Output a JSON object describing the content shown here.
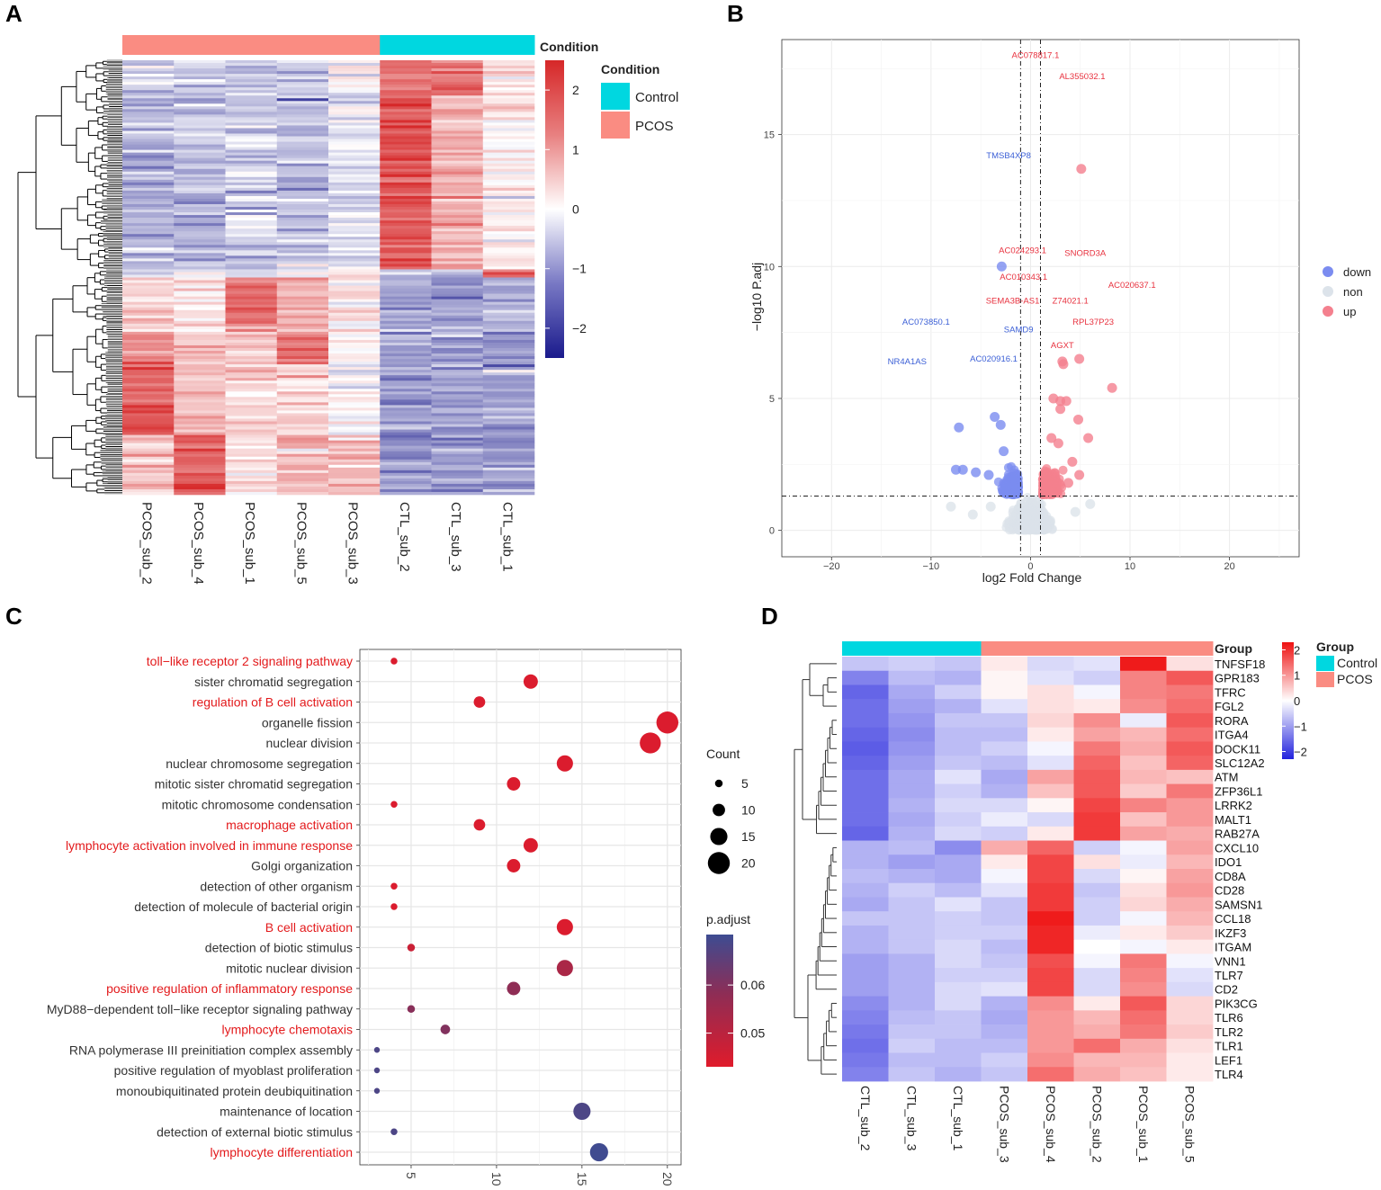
{
  "panels": {
    "a": "A",
    "b": "B",
    "c": "C",
    "d": "D"
  },
  "chart_data": [
    {
      "id": "A",
      "type": "heatmap",
      "columns": [
        "PCOS_sub_2",
        "PCOS_sub_4",
        "PCOS_sub_1",
        "PCOS_sub_5",
        "PCOS_sub_3",
        "CTL_sub_2",
        "CTL_sub_3",
        "CTL_sub_1"
      ],
      "column_groups": [
        "PCOS",
        "PCOS",
        "PCOS",
        "PCOS",
        "PCOS",
        "Control",
        "Control",
        "Control"
      ],
      "annotation_title": "Condition",
      "color_scale": {
        "min": -2.5,
        "max": 2.5,
        "ticks": [
          2,
          1,
          0,
          -1,
          -2
        ],
        "low": "#1a1a8c",
        "mid": "#ffffff",
        "high": "#d62728"
      },
      "legend": {
        "title": "Condition",
        "items": [
          {
            "label": "Control",
            "color": "#00d7e0"
          },
          {
            "label": "PCOS",
            "color": "#fa8c82"
          }
        ]
      }
    },
    {
      "id": "B",
      "type": "scatter",
      "xlabel": "log2 Fold Change",
      "ylabel": "−log10 P.adj",
      "xlim": [
        -25,
        27
      ],
      "ylim": [
        -1,
        18.6
      ],
      "xticks": [
        -20,
        -10,
        0,
        10,
        20
      ],
      "yticks": [
        0,
        5,
        10,
        15
      ],
      "vlines": [
        -1,
        1
      ],
      "hline": 1.3,
      "legend": [
        {
          "label": "down",
          "color": "#7b8cf0"
        },
        {
          "label": "non",
          "color": "#dce3ea"
        },
        {
          "label": "up",
          "color": "#f4808e"
        }
      ],
      "labeled_points": [
        {
          "label": "AC078817.1",
          "x": 0.5,
          "y": 17.9,
          "group": "up"
        },
        {
          "label": "AL355032.1",
          "x": 5.2,
          "y": 17.1,
          "group": "up"
        },
        {
          "label": "TMSB4XP8",
          "x": -2.2,
          "y": 14.1,
          "group": "down"
        },
        {
          "label": "AC024293.1",
          "x": -0.8,
          "y": 10.5,
          "group": "up"
        },
        {
          "label": "SNORD3A",
          "x": 5.5,
          "y": 10.4,
          "group": "up"
        },
        {
          "label": "AC010343.1",
          "x": -0.7,
          "y": 9.5,
          "group": "up"
        },
        {
          "label": "AC020637.1",
          "x": 10.2,
          "y": 9.2,
          "group": "up"
        },
        {
          "label": "SEMA3B-AS1",
          "x": -1.8,
          "y": 8.6,
          "group": "up"
        },
        {
          "label": "Z74021.1",
          "x": 4.0,
          "y": 8.6,
          "group": "up"
        },
        {
          "label": "AC073850.1",
          "x": -10.5,
          "y": 7.8,
          "group": "down"
        },
        {
          "label": "RPL37P23",
          "x": 6.3,
          "y": 7.8,
          "group": "up"
        },
        {
          "label": "SAMD9",
          "x": -1.2,
          "y": 7.5,
          "group": "down"
        },
        {
          "label": "AGXT",
          "x": 3.2,
          "y": 6.9,
          "group": "up"
        },
        {
          "label": "NR4A1AS",
          "x": -12.4,
          "y": 6.3,
          "group": "down"
        },
        {
          "label": "AC020916.1",
          "x": -3.7,
          "y": 6.4,
          "group": "down"
        }
      ],
      "points": [
        {
          "x": 5.1,
          "y": 13.7,
          "g": "up"
        },
        {
          "x": -2.9,
          "y": 10.0,
          "g": "down"
        },
        {
          "x": 8.2,
          "y": 5.4,
          "g": "up"
        },
        {
          "x": 3.2,
          "y": 6.4,
          "g": "up"
        },
        {
          "x": 3.3,
          "y": 6.3,
          "g": "up"
        },
        {
          "x": 4.9,
          "y": 6.5,
          "g": "up"
        },
        {
          "x": -7.2,
          "y": 3.9,
          "g": "down"
        },
        {
          "x": -3.6,
          "y": 4.3,
          "g": "down"
        },
        {
          "x": -3.0,
          "y": 4.0,
          "g": "down"
        },
        {
          "x": -7.5,
          "y": 2.3,
          "g": "down"
        },
        {
          "x": -6.8,
          "y": 2.3,
          "g": "down"
        },
        {
          "x": -5.5,
          "y": 2.2,
          "g": "down"
        },
        {
          "x": -4.2,
          "y": 2.1,
          "g": "down"
        },
        {
          "x": -2.7,
          "y": 3.0,
          "g": "down"
        },
        {
          "x": 2.3,
          "y": 5.0,
          "g": "up"
        },
        {
          "x": 3.0,
          "y": 4.9,
          "g": "up"
        },
        {
          "x": 3.6,
          "y": 4.9,
          "g": "up"
        },
        {
          "x": 3.0,
          "y": 4.6,
          "g": "up"
        },
        {
          "x": 4.8,
          "y": 4.2,
          "g": "up"
        },
        {
          "x": 5.8,
          "y": 3.5,
          "g": "up"
        },
        {
          "x": 2.1,
          "y": 3.5,
          "g": "up"
        },
        {
          "x": 2.8,
          "y": 3.3,
          "g": "up"
        },
        {
          "x": 4.2,
          "y": 2.6,
          "g": "up"
        },
        {
          "x": 4.9,
          "y": 2.1,
          "g": "up"
        },
        {
          "x": 3.8,
          "y": 1.8,
          "g": "up"
        },
        {
          "x": -8.0,
          "y": 0.9,
          "g": "non"
        },
        {
          "x": -5.8,
          "y": 0.6,
          "g": "non"
        },
        {
          "x": -4.0,
          "y": 0.9,
          "g": "non"
        },
        {
          "x": 6.0,
          "y": 1.0,
          "g": "non"
        },
        {
          "x": 4.5,
          "y": 0.7,
          "g": "non"
        }
      ]
    },
    {
      "id": "C",
      "type": "scatter",
      "subtype": "dot",
      "xticks": [
        5,
        10,
        15,
        20
      ],
      "xlim": [
        2,
        20.8
      ],
      "size_legend": {
        "title": "Count",
        "values": [
          5,
          10,
          15,
          20
        ]
      },
      "color_legend": {
        "title": "p.adjust",
        "ticks": [
          0.06,
          0.05
        ],
        "min": 0.043,
        "max": 0.0705,
        "low": "#e01b2b",
        "high": "#3d4c92"
      },
      "terms": [
        {
          "label": "toll−like receptor 2 signaling pathway",
          "count": 4,
          "padj": 0.044,
          "highlight": true
        },
        {
          "label": "sister chromatid segregation",
          "count": 12,
          "padj": 0.044,
          "highlight": false
        },
        {
          "label": "regulation of B cell activation",
          "count": 9,
          "padj": 0.044,
          "highlight": true
        },
        {
          "label": "organelle fission",
          "count": 20,
          "padj": 0.044,
          "highlight": false
        },
        {
          "label": "nuclear division",
          "count": 19,
          "padj": 0.044,
          "highlight": false
        },
        {
          "label": "nuclear chromosome segregation",
          "count": 14,
          "padj": 0.044,
          "highlight": false
        },
        {
          "label": "mitotic sister chromatid segregation",
          "count": 11,
          "padj": 0.044,
          "highlight": false
        },
        {
          "label": "mitotic chromosome condensation",
          "count": 4,
          "padj": 0.044,
          "highlight": false
        },
        {
          "label": "macrophage activation",
          "count": 9,
          "padj": 0.044,
          "highlight": true
        },
        {
          "label": "lymphocyte activation involved in immune response",
          "count": 12,
          "padj": 0.044,
          "highlight": true
        },
        {
          "label": "Golgi organization",
          "count": 11,
          "padj": 0.044,
          "highlight": false
        },
        {
          "label": "detection of other organism",
          "count": 4,
          "padj": 0.044,
          "highlight": false
        },
        {
          "label": "detection of molecule of bacterial origin",
          "count": 4,
          "padj": 0.044,
          "highlight": false
        },
        {
          "label": "B cell activation",
          "count": 14,
          "padj": 0.044,
          "highlight": true
        },
        {
          "label": "detection of biotic stimulus",
          "count": 5,
          "padj": 0.047,
          "highlight": false
        },
        {
          "label": "mitotic nuclear division",
          "count": 14,
          "padj": 0.053,
          "highlight": false
        },
        {
          "label": "positive regulation of inflammatory response",
          "count": 11,
          "padj": 0.058,
          "highlight": true
        },
        {
          "label": "MyD88−dependent toll−like receptor signaling pathway",
          "count": 5,
          "padj": 0.059,
          "highlight": false
        },
        {
          "label": "lymphocyte chemotaxis",
          "count": 7,
          "padj": 0.06,
          "highlight": true
        },
        {
          "label": "RNA polymerase III preinitiation complex assembly",
          "count": 3,
          "padj": 0.068,
          "highlight": false
        },
        {
          "label": "positive regulation of myoblast proliferation",
          "count": 3,
          "padj": 0.068,
          "highlight": false
        },
        {
          "label": "monoubiquitinated protein deubiquitination",
          "count": 3,
          "padj": 0.068,
          "highlight": false
        },
        {
          "label": "maintenance of location",
          "count": 15,
          "padj": 0.068,
          "highlight": false
        },
        {
          "label": "detection of external biotic stimulus",
          "count": 4,
          "padj": 0.068,
          "highlight": false
        },
        {
          "label": "lymphocyte differentiation",
          "count": 16,
          "padj": 0.07,
          "highlight": true
        }
      ]
    },
    {
      "id": "D",
      "type": "heatmap",
      "columns": [
        "CTL_sub_2",
        "CTL_sub_3",
        "CTL_sub_1",
        "PCOS_sub_3",
        "PCOS_sub_4",
        "PCOS_sub_2",
        "PCOS_sub_1",
        "PCOS_sub_5"
      ],
      "column_groups": [
        "Control",
        "Control",
        "Control",
        "PCOS",
        "PCOS",
        "PCOS",
        "PCOS",
        "PCOS"
      ],
      "annotation_title": "Group",
      "rows": [
        "TNFSF18",
        "GPR183",
        "TFRC",
        "FGL2",
        "RORA",
        "ITGA4",
        "DOCK11",
        "SLC12A2",
        "ATM",
        "ZFP36L1",
        "LRRK2",
        "MALT1",
        "RAB27A",
        "CXCL10",
        "IDO1",
        "CD8A",
        "CD28",
        "SAMSN1",
        "CCL18",
        "IKZF3",
        "ITGAM",
        "VNN1",
        "TLR7",
        "CD2",
        "PIK3CG",
        "TLR6",
        "TLR2",
        "TLR1",
        "LEF1",
        "TLR4"
      ],
      "values": [
        [
          -0.6,
          -0.5,
          -0.6,
          0.2,
          -0.4,
          -0.3,
          2.2,
          0.3
        ],
        [
          -1.3,
          -0.7,
          -0.8,
          0.1,
          -0.3,
          -0.5,
          1.2,
          1.6
        ],
        [
          -1.6,
          -0.9,
          -0.5,
          0.1,
          0.3,
          -0.1,
          1.2,
          1.3
        ],
        [
          -1.5,
          -1.0,
          -0.8,
          -0.3,
          0.3,
          0.2,
          1.1,
          1.4
        ],
        [
          -1.5,
          -1.1,
          -0.6,
          -0.6,
          0.4,
          1.1,
          -0.2,
          1.6
        ],
        [
          -1.6,
          -1.2,
          -0.7,
          -0.7,
          0.2,
          0.9,
          0.7,
          1.4
        ],
        [
          -1.7,
          -1.1,
          -0.7,
          -0.5,
          -0.1,
          1.3,
          0.8,
          1.6
        ],
        [
          -1.6,
          -1.0,
          -0.6,
          -0.7,
          -0.3,
          1.5,
          0.6,
          1.5
        ],
        [
          -1.5,
          -0.9,
          -0.3,
          -0.9,
          0.9,
          1.6,
          0.7,
          0.6
        ],
        [
          -1.5,
          -0.9,
          -0.5,
          -0.8,
          0.6,
          1.6,
          0.5,
          1.3
        ],
        [
          -1.5,
          -0.8,
          -0.4,
          -0.4,
          0.1,
          1.8,
          1.2,
          1.0
        ],
        [
          -1.5,
          -0.9,
          -0.5,
          -0.2,
          -0.4,
          1.9,
          0.6,
          1.0
        ],
        [
          -1.6,
          -0.8,
          -0.4,
          -0.5,
          0.2,
          1.9,
          0.9,
          0.8
        ],
        [
          -0.8,
          -0.7,
          -1.2,
          0.8,
          1.5,
          -0.5,
          -0.1,
          0.9
        ],
        [
          -0.8,
          -1.0,
          -0.9,
          0.2,
          1.8,
          0.3,
          -0.2,
          0.7
        ],
        [
          -0.7,
          -0.8,
          -0.9,
          -0.1,
          1.8,
          -0.4,
          0.1,
          0.9
        ],
        [
          -0.8,
          -0.5,
          -0.7,
          -0.3,
          1.9,
          -0.6,
          0.3,
          1.0
        ],
        [
          -0.9,
          -0.6,
          -0.3,
          -0.6,
          1.9,
          -0.5,
          0.4,
          0.8
        ],
        [
          -0.6,
          -0.6,
          -0.5,
          -0.6,
          2.2,
          -0.5,
          -0.1,
          0.7
        ],
        [
          -0.8,
          -0.6,
          -0.5,
          -0.5,
          2.1,
          -0.2,
          0.2,
          0.5
        ],
        [
          -0.8,
          -0.6,
          -0.4,
          -0.7,
          2.1,
          0.0,
          -0.1,
          0.2
        ],
        [
          -1.0,
          -0.8,
          -0.4,
          -0.6,
          1.7,
          -0.1,
          1.3,
          -0.1
        ],
        [
          -1.0,
          -0.8,
          -0.5,
          -0.5,
          1.8,
          -0.4,
          1.2,
          -0.3
        ],
        [
          -1.0,
          -0.8,
          -0.4,
          -0.3,
          1.8,
          -0.4,
          1.1,
          -0.4
        ],
        [
          -1.2,
          -0.8,
          -0.4,
          -0.8,
          1.1,
          0.2,
          1.6,
          0.4
        ],
        [
          -1.3,
          -0.7,
          -0.6,
          -0.9,
          1.0,
          0.7,
          1.4,
          0.4
        ],
        [
          -1.4,
          -0.6,
          -0.6,
          -0.8,
          1.0,
          0.8,
          1.3,
          0.5
        ],
        [
          -1.5,
          -0.5,
          -0.7,
          -0.7,
          1.0,
          1.4,
          0.8,
          0.3
        ],
        [
          -1.4,
          -0.7,
          -0.7,
          -0.5,
          1.1,
          0.7,
          0.7,
          0.2
        ],
        [
          -1.3,
          -0.6,
          -0.8,
          -0.6,
          1.4,
          0.8,
          0.6,
          0.2
        ]
      ],
      "color_scale": {
        "min": -2.3,
        "max": 2.3,
        "ticks": [
          2,
          1,
          0,
          -1,
          -2
        ],
        "low": "#2222dd",
        "mid": "#ffffff",
        "high": "#ee1111"
      },
      "legend": {
        "title": "Group",
        "items": [
          {
            "label": "Control",
            "color": "#00d7e0"
          },
          {
            "label": "PCOS",
            "color": "#fa8c82"
          }
        ]
      }
    }
  ]
}
